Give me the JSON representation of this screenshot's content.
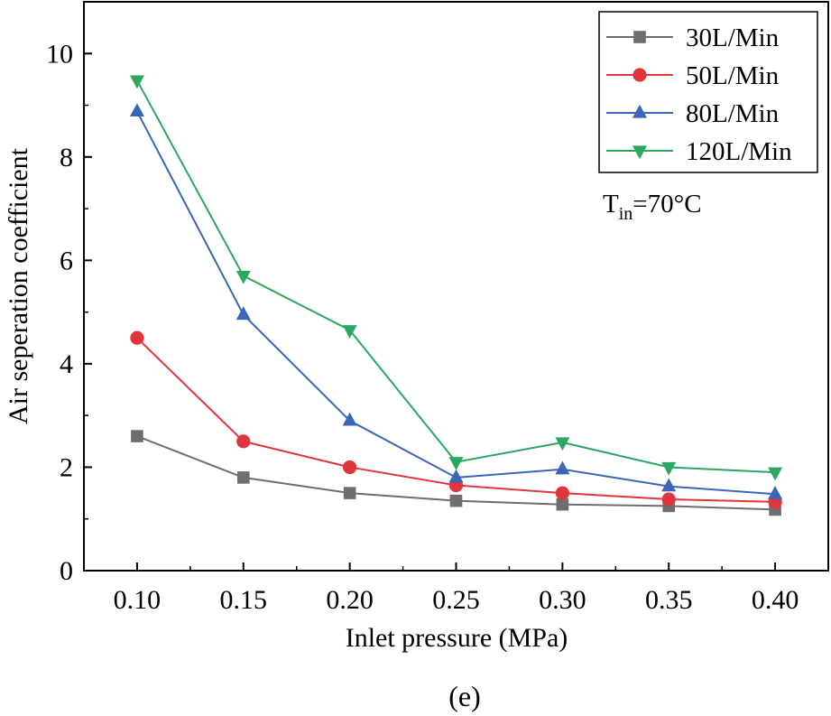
{
  "chart_data": {
    "type": "line",
    "title": "",
    "xlabel": "Inlet pressure (MPa)",
    "ylabel": "Air seperation coefficient",
    "x": [
      0.1,
      0.15,
      0.2,
      0.25,
      0.3,
      0.35,
      0.4
    ],
    "x_tick_labels": [
      "0.10",
      "0.15",
      "0.20",
      "0.25",
      "0.30",
      "0.35",
      "0.40"
    ],
    "xlim": [
      0.075,
      0.425
    ],
    "ylim": [
      0,
      11
    ],
    "y_ticks": [
      0,
      2,
      4,
      6,
      8,
      10
    ],
    "y_tick_labels": [
      "0",
      "2",
      "4",
      "6",
      "8",
      "10"
    ],
    "grid": false,
    "legend_position": "top-right",
    "series": [
      {
        "name": "30L/Min",
        "marker": "square",
        "color": "#6e6e6e",
        "values": [
          2.6,
          1.8,
          1.5,
          1.35,
          1.28,
          1.25,
          1.18
        ]
      },
      {
        "name": "50L/Min",
        "marker": "circle",
        "color": "#e0353b",
        "values": [
          4.5,
          2.5,
          2.0,
          1.65,
          1.5,
          1.38,
          1.33
        ]
      },
      {
        "name": "80L/Min",
        "marker": "triangle-up",
        "color": "#3a66b8",
        "values": [
          8.88,
          4.95,
          2.9,
          1.8,
          1.96,
          1.63,
          1.48
        ]
      },
      {
        "name": "120L/Min",
        "marker": "triangle-down",
        "color": "#2aa761",
        "values": [
          9.48,
          5.7,
          4.65,
          2.1,
          2.48,
          2.0,
          1.9
        ]
      }
    ],
    "annotation": {
      "main": "T",
      "sub": "in",
      "rest": "=70°C"
    },
    "caption": "(e)"
  }
}
